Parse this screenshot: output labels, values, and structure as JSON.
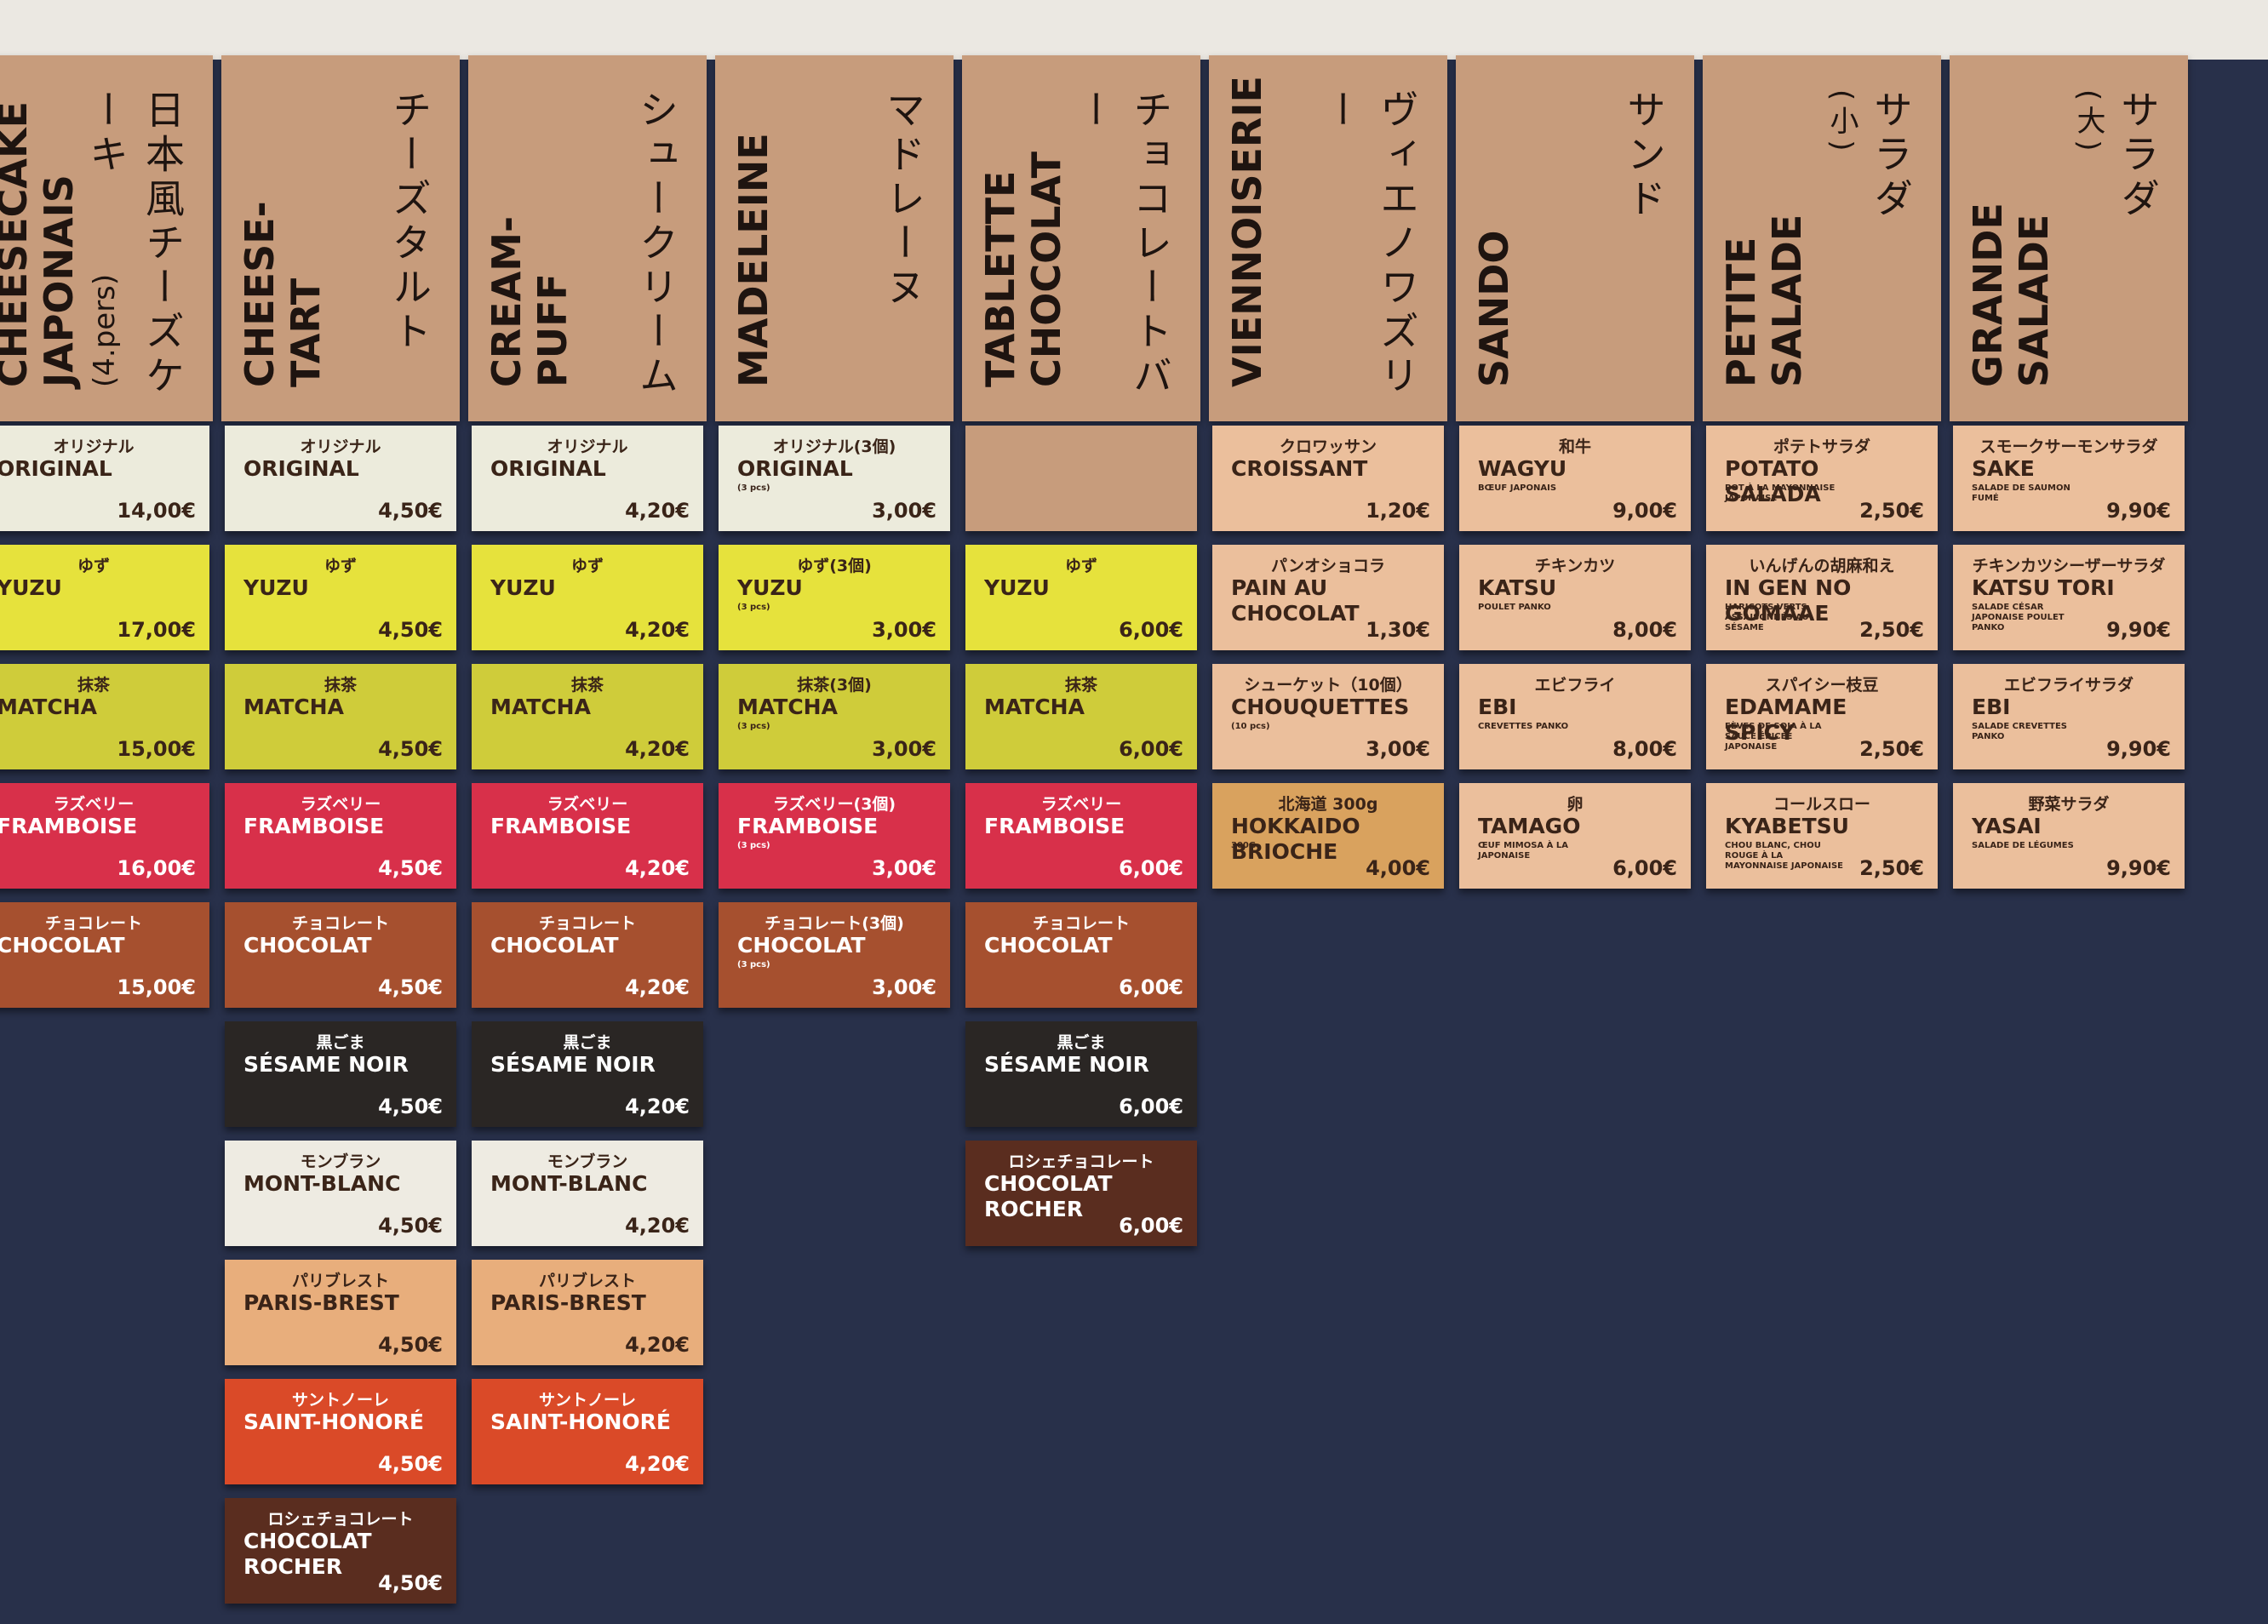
{
  "columns": [
    {
      "title": "CHEESECAKE JAPONAIS",
      "title_note": "(4.pers)",
      "title_jp": "日本風チーズケーキ",
      "items": [
        {
          "jp": "オリジナル",
          "name": "ORIGINAL",
          "price": "14,00€",
          "color": "#ecebdc"
        },
        {
          "jp": "ゆず",
          "name": "YUZU",
          "price": "17,00€",
          "color": "#e6e23c"
        },
        {
          "jp": "抹茶",
          "name": "MATCHA",
          "price": "15,00€",
          "color": "#cfcc3a"
        },
        {
          "jp": "ラズベリー",
          "name": "FRAMBOISE",
          "price": "16,00€",
          "color": "#d8304a"
        },
        {
          "jp": "チョコレート",
          "name": "CHOCOLAT",
          "price": "15,00€",
          "color": "#a6502f"
        }
      ]
    },
    {
      "title": "CHEESE-TART",
      "title_jp": "チーズタルト",
      "items": [
        {
          "jp": "オリジナル",
          "name": "ORIGINAL",
          "price": "4,50€",
          "color": "#ecebdc"
        },
        {
          "jp": "ゆず",
          "name": "YUZU",
          "price": "4,50€",
          "color": "#e6e23c"
        },
        {
          "jp": "抹茶",
          "name": "MATCHA",
          "price": "4,50€",
          "color": "#cfcc3a"
        },
        {
          "jp": "ラズベリー",
          "name": "FRAMBOISE",
          "price": "4,50€",
          "color": "#d8304a"
        },
        {
          "jp": "チョコレート",
          "name": "CHOCOLAT",
          "price": "4,50€",
          "color": "#a6502f"
        },
        {
          "jp": "黒ごま",
          "name": "SÉSAME NOIR",
          "price": "4,50€",
          "color": "#2a2624"
        },
        {
          "jp": "モンブラン",
          "name": "MONT-BLANC",
          "price": "4,50€",
          "color": "#eeebe2"
        },
        {
          "jp": "パリブレスト",
          "name": "PARIS-BREST",
          "price": "4,50€",
          "color": "#e8ae7c"
        },
        {
          "jp": "サントノーレ",
          "name": "SAINT-HONORÉ",
          "price": "4,50€",
          "color": "#da4a28"
        },
        {
          "jp": "ロシェチョコレート",
          "name": "CHOCOLAT ROCHER",
          "price": "4,50€",
          "color": "#5a2d1f"
        }
      ]
    },
    {
      "title": "CREAM-PUFF",
      "title_jp": "シュークリーム",
      "items": [
        {
          "jp": "オリジナル",
          "name": "ORIGINAL",
          "price": "4,20€",
          "color": "#ecebdc"
        },
        {
          "jp": "ゆず",
          "name": "YUZU",
          "price": "4,20€",
          "color": "#e6e23c"
        },
        {
          "jp": "抹茶",
          "name": "MATCHA",
          "price": "4,20€",
          "color": "#cfcc3a"
        },
        {
          "jp": "ラズベリー",
          "name": "FRAMBOISE",
          "price": "4,20€",
          "color": "#d8304a"
        },
        {
          "jp": "チョコレート",
          "name": "CHOCOLAT",
          "price": "4,20€",
          "color": "#a6502f"
        },
        {
          "jp": "黒ごま",
          "name": "SÉSAME NOIR",
          "price": "4,20€",
          "color": "#2a2624"
        },
        {
          "jp": "モンブラン",
          "name": "MONT-BLANC",
          "price": "4,20€",
          "color": "#eeebe2"
        },
        {
          "jp": "パリブレスト",
          "name": "PARIS-BREST",
          "price": "4,20€",
          "color": "#e8ae7c"
        },
        {
          "jp": "サントノーレ",
          "name": "SAINT-HONORÉ",
          "price": "4,20€",
          "color": "#da4a28"
        }
      ]
    },
    {
      "title": "MADELEINE",
      "title_jp": "マドレーヌ",
      "items": [
        {
          "jp": "オリジナル(3個)",
          "name": "ORIGINAL",
          "note": "(3 pcs)",
          "price": "3,00€",
          "color": "#ecebdc"
        },
        {
          "jp": "ゆず(3個)",
          "name": "YUZU",
          "note": "(3 pcs)",
          "price": "3,00€",
          "color": "#e6e23c"
        },
        {
          "jp": "抹茶(3個)",
          "name": "MATCHA",
          "note": "(3 pcs)",
          "price": "3,00€",
          "color": "#cfcc3a"
        },
        {
          "jp": "ラズベリー(3個)",
          "name": "FRAMBOISE",
          "note": "(3 pcs)",
          "price": "3,00€",
          "color": "#d8304a"
        },
        {
          "jp": "チョコレート(3個)",
          "name": "CHOCOLAT",
          "note": "(3 pcs)",
          "price": "3,00€",
          "color": "#a6502f"
        }
      ]
    },
    {
      "title": "TABLETTE CHOCOLAT",
      "title_jp": "チョコレートバー",
      "items": [
        null,
        {
          "jp": "ゆず",
          "name": "YUZU",
          "price": "6,00€",
          "color": "#e6e23c"
        },
        {
          "jp": "抹茶",
          "name": "MATCHA",
          "price": "6,00€",
          "color": "#cfcc3a"
        },
        {
          "jp": "ラズベリー",
          "name": "FRAMBOISE",
          "price": "6,00€",
          "color": "#d8304a"
        },
        {
          "jp": "チョコレート",
          "name": "CHOCOLAT",
          "price": "6,00€",
          "color": "#a6502f"
        },
        {
          "jp": "黒ごま",
          "name": "SÉSAME NOIR",
          "price": "6,00€",
          "color": "#2a2624"
        },
        {
          "jp": "ロシェチョコレート",
          "name": "CHOCOLAT ROCHER",
          "price": "6,00€",
          "color": "#5a2d1f"
        }
      ]
    },
    {
      "title": "VIENNOISERIE",
      "title_jp": "ヴィエノワズリー",
      "color": "#ebbf9c",
      "items": [
        {
          "jp": "クロワッサン",
          "name": "CROISSANT",
          "price": "1,20€"
        },
        {
          "jp": "パンオショコラ",
          "name": "PAIN AU CHOCOLAT",
          "price": "1,30€"
        },
        {
          "jp": "シューケット（10個）",
          "name": "CHOUQUETTES",
          "note": "(10 pcs)",
          "price": "3,00€"
        },
        {
          "jp": "北海道 300g",
          "name": "HOKKAIDO BRIOCHE",
          "note": "300G",
          "price": "4,00€",
          "color": "#d9a25e"
        }
      ]
    },
    {
      "title": "SANDO",
      "title_jp": "サンド",
      "color": "#ebbf9c",
      "items": [
        {
          "jp": "和牛",
          "name": "WAGYU",
          "note": "BŒUF JAPONAIS",
          "price": "9,00€"
        },
        {
          "jp": "チキンカツ",
          "name": "KATSU",
          "note": "POULET PANKO",
          "price": "8,00€"
        },
        {
          "jp": "エビフライ",
          "name": "EBI",
          "note": "CREVETTES PANKO",
          "price": "8,00€"
        },
        {
          "jp": "卵",
          "name": "TAMAGO",
          "note": "ŒUF MIMOSA À LA JAPONAISE",
          "price": "6,00€"
        }
      ]
    },
    {
      "title": "PETITE SALADE",
      "title_jp": "サラダ",
      "title_note": "(小)",
      "color": "#ebbf9c",
      "items": [
        {
          "jp": "ポテトサラダ",
          "name": "POTATO SALADA",
          "note": "POT À LA MAYONNAISE JAPONAISE",
          "price": "2,50€"
        },
        {
          "jp": "いんげんの胡麻和え",
          "name": "IN GEN NO GOMAAE",
          "note": "HARICOTS VERTS ASSAISONNÉS AU SÉSAME",
          "price": "2,50€"
        },
        {
          "jp": "スパイシー枝豆",
          "name": "EDAMAME SPICY",
          "note": "FÈVES DE SOJA À LA SAUCE ÉPICÉE JAPONAISE",
          "price": "2,50€"
        },
        {
          "jp": "コールスロー",
          "name": "KYABETSU",
          "note": "CHOU BLANC, CHOU ROUGE À LA MAYONNAISE JAPONAISE",
          "price": "2,50€"
        }
      ]
    },
    {
      "title": "GRANDE SALADE",
      "title_jp": "サラダ",
      "title_note": "(大)",
      "color": "#ebbf9c",
      "items": [
        {
          "jp": "スモークサーモンサラダ",
          "name": "SAKE",
          "note": "SALADE DE SAUMON FUMÉ",
          "price": "9,90€"
        },
        {
          "jp": "チキンカツシーザーサラダ",
          "name": "KATSU TORI",
          "note": "SALADE CÉSAR JAPONAISE POULET PANKO",
          "price": "9,90€"
        },
        {
          "jp": "エビフライサラダ",
          "name": "EBI",
          "note": "SALADE CREVETTES PANKO",
          "price": "9,90€"
        },
        {
          "jp": "野菜サラダ",
          "name": "YASAI",
          "note": "SALADE DE LÉGUMES",
          "price": "9,90€"
        }
      ]
    }
  ]
}
